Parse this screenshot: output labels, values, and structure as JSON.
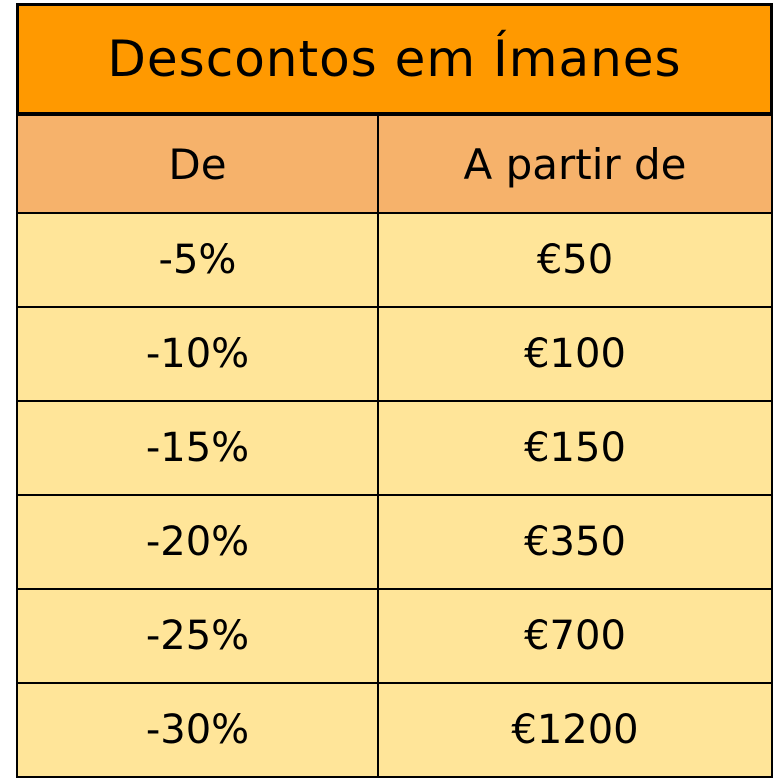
{
  "title": "Descontos em Ímanes",
  "headers": [
    "De",
    "A partir de"
  ],
  "rows": [
    [
      "-5%",
      "€50"
    ],
    [
      "-10%",
      "€100"
    ],
    [
      "-15%",
      "€150"
    ],
    [
      "-20%",
      "€350"
    ],
    [
      "-25%",
      "€700"
    ],
    [
      "-30%",
      "€1200"
    ]
  ],
  "colors": {
    "title_bg": "#ff9900",
    "header_bg": "#f6b26b",
    "body_bg": "#ffe599"
  }
}
